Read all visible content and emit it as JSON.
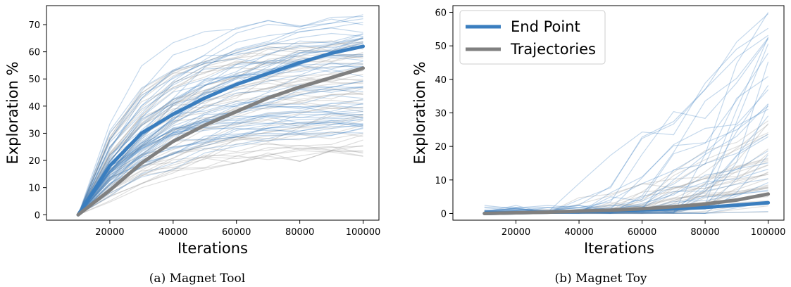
{
  "chart_data": [
    {
      "type": "line",
      "caption": "(a) Magnet Tool",
      "xlabel": "Iterations",
      "ylabel": "Exploration %",
      "xlim": [
        0,
        105000
      ],
      "ylim": [
        -2,
        77
      ],
      "xticks": [
        20000,
        40000,
        60000,
        80000,
        100000
      ],
      "yticks": [
        0,
        10,
        20,
        30,
        40,
        50,
        60,
        70
      ],
      "x": [
        10000,
        20000,
        30000,
        40000,
        50000,
        60000,
        70000,
        80000,
        90000,
        100000
      ],
      "series": [
        {
          "role": "end-point-mean",
          "color": "#3a7ebf",
          "values": [
            0,
            18,
            30,
            37,
            43,
            48,
            52,
            56,
            59.5,
            62
          ]
        },
        {
          "role": "trajectories-mean",
          "color": "#808080",
          "values": [
            0,
            9,
            19,
            27,
            33,
            38,
            43,
            47,
            50.5,
            54
          ]
        }
      ],
      "thin_lines": {
        "end_point_count": 55,
        "trajectory_count": 50,
        "end_point_range": [
          30,
          73
        ],
        "trajectory_range": [
          22,
          66
        ]
      }
    },
    {
      "type": "line",
      "caption": "(b) Magnet Toy",
      "xlabel": "Iterations",
      "ylabel": "Exploration %",
      "xlim": [
        0,
        105000
      ],
      "ylim": [
        -2,
        62
      ],
      "xticks": [
        20000,
        40000,
        60000,
        80000,
        100000
      ],
      "yticks": [
        0,
        10,
        20,
        30,
        40,
        50,
        60
      ],
      "x": [
        10000,
        20000,
        30000,
        40000,
        50000,
        60000,
        70000,
        80000,
        90000,
        100000
      ],
      "series": [
        {
          "role": "end-point-mean",
          "color": "#3a7ebf",
          "values": [
            0,
            0.2,
            0.4,
            0.6,
            0.9,
            1.1,
            1.4,
            1.8,
            2.5,
            3.2
          ]
        },
        {
          "role": "trajectories-mean",
          "color": "#808080",
          "values": [
            0,
            0.2,
            0.4,
            0.7,
            1.0,
            1.4,
            2.0,
            2.8,
            4.0,
            5.8
          ]
        }
      ],
      "thin_lines": {
        "end_point_count": 30,
        "trajectory_count": 30,
        "end_point_range": [
          0,
          60
        ],
        "trajectory_range": [
          0,
          28
        ]
      },
      "legend": {
        "placement": "top-left",
        "entries": [
          {
            "label": "End Point",
            "color": "#3a7ebf"
          },
          {
            "label": "Trajectories",
            "color": "#808080"
          }
        ]
      }
    }
  ]
}
